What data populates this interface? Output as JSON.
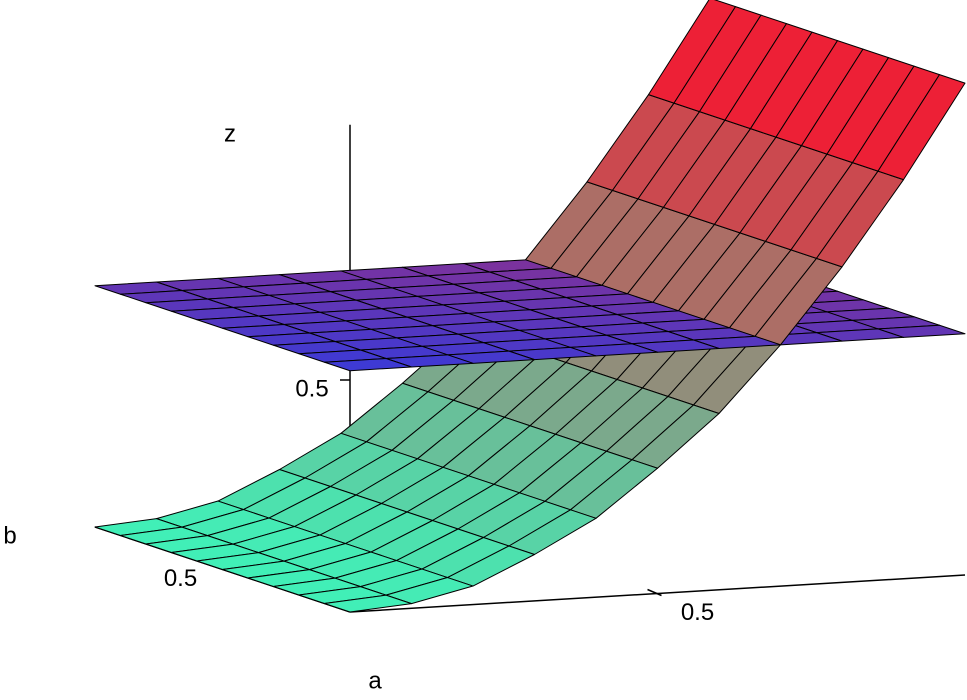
{
  "chart_data": {
    "type": "surface",
    "xlabel": "a",
    "ylabel": "b",
    "zlabel": "z",
    "x": [
      0,
      0.1,
      0.2,
      0.3,
      0.4,
      0.5,
      0.6,
      0.7,
      0.8,
      0.9,
      1
    ],
    "y": [
      0,
      0.1,
      0.2,
      0.3,
      0.4,
      0.5,
      0.6,
      0.7,
      0.8,
      0.9,
      1
    ],
    "xlim": [
      0,
      1
    ],
    "ylim": [
      0,
      1
    ],
    "zlim": [
      0,
      1.05
    ],
    "xticks": [
      0.5
    ],
    "yticks": [
      0.5
    ],
    "zticks": [
      0.5
    ],
    "surfaces": [
      {
        "colors": [
          "#3a3ad8",
          "#8a3090"
        ],
        "z": [
          [
            0.52,
            0.52,
            0.52,
            0.52,
            0.52,
            0.52,
            0.52,
            0.52,
            0.52,
            0.52,
            0.52
          ],
          [
            0.52,
            0.52,
            0.52,
            0.52,
            0.52,
            0.52,
            0.52,
            0.52,
            0.52,
            0.52,
            0.52
          ],
          [
            0.52,
            0.52,
            0.52,
            0.52,
            0.52,
            0.52,
            0.52,
            0.52,
            0.52,
            0.52,
            0.52
          ],
          [
            0.52,
            0.52,
            0.52,
            0.52,
            0.52,
            0.52,
            0.52,
            0.52,
            0.52,
            0.52,
            0.52
          ],
          [
            0.52,
            0.52,
            0.52,
            0.52,
            0.52,
            0.52,
            0.52,
            0.52,
            0.52,
            0.52,
            0.52
          ],
          [
            0.52,
            0.52,
            0.52,
            0.52,
            0.52,
            0.52,
            0.52,
            0.52,
            0.52,
            0.52,
            0.52
          ],
          [
            0.52,
            0.52,
            0.52,
            0.52,
            0.52,
            0.52,
            0.52,
            0.52,
            0.52,
            0.52,
            0.52
          ],
          [
            0.52,
            0.52,
            0.52,
            0.52,
            0.52,
            0.52,
            0.52,
            0.52,
            0.52,
            0.52,
            0.52
          ],
          [
            0.52,
            0.52,
            0.52,
            0.52,
            0.52,
            0.52,
            0.52,
            0.52,
            0.52,
            0.52,
            0.52
          ],
          [
            0.52,
            0.52,
            0.52,
            0.52,
            0.52,
            0.52,
            0.52,
            0.52,
            0.52,
            0.52,
            0.52
          ],
          [
            0.52,
            0.52,
            0.52,
            0.52,
            0.52,
            0.52,
            0.52,
            0.52,
            0.52,
            0.52,
            0.52
          ]
        ]
      },
      {
        "colors": [
          "#40f0b8",
          "#ff0a28"
        ],
        "z": [
          [
            0,
            0.01,
            0.04,
            0.1,
            0.17,
            0.27,
            0.38,
            0.52,
            0.68,
            0.86,
            1.06
          ],
          [
            0,
            0.01,
            0.04,
            0.1,
            0.17,
            0.27,
            0.38,
            0.52,
            0.68,
            0.86,
            1.06
          ],
          [
            0,
            0.01,
            0.04,
            0.1,
            0.17,
            0.27,
            0.38,
            0.52,
            0.68,
            0.86,
            1.06
          ],
          [
            0,
            0.01,
            0.04,
            0.1,
            0.17,
            0.27,
            0.38,
            0.52,
            0.68,
            0.86,
            1.06
          ],
          [
            0,
            0.01,
            0.04,
            0.1,
            0.17,
            0.27,
            0.38,
            0.52,
            0.68,
            0.86,
            1.06
          ],
          [
            0,
            0.01,
            0.04,
            0.1,
            0.17,
            0.27,
            0.38,
            0.52,
            0.68,
            0.86,
            1.06
          ],
          [
            0,
            0.01,
            0.04,
            0.1,
            0.17,
            0.27,
            0.38,
            0.52,
            0.68,
            0.86,
            1.06
          ],
          [
            0,
            0.01,
            0.04,
            0.1,
            0.17,
            0.27,
            0.38,
            0.52,
            0.68,
            0.86,
            1.06
          ],
          [
            0,
            0.01,
            0.04,
            0.1,
            0.17,
            0.27,
            0.38,
            0.52,
            0.68,
            0.86,
            1.06
          ],
          [
            0,
            0.01,
            0.04,
            0.1,
            0.17,
            0.27,
            0.38,
            0.52,
            0.68,
            0.86,
            1.06
          ],
          [
            0,
            0.01,
            0.04,
            0.1,
            0.17,
            0.27,
            0.38,
            0.52,
            0.68,
            0.86,
            1.06
          ]
        ]
      }
    ]
  }
}
